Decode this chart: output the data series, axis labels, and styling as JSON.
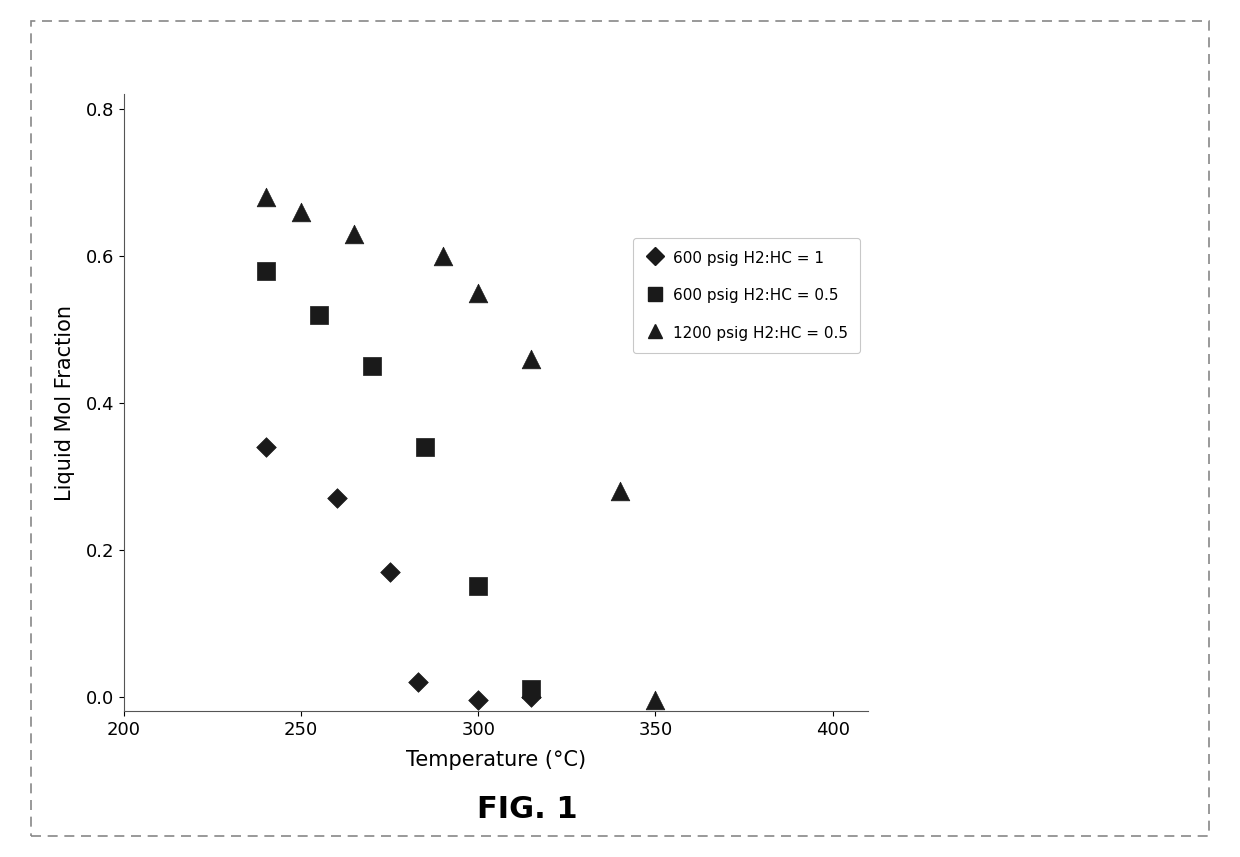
{
  "series1_label": "600 psig H2:HC = 1",
  "series2_label": "600 psig H2:HC = 0.5",
  "series3_label": "1200 psig H2:HC = 0.5",
  "series1_x": [
    240,
    260,
    275,
    283,
    300,
    315
  ],
  "series1_y": [
    0.34,
    0.27,
    0.17,
    0.02,
    -0.005,
    0.0
  ],
  "series2_x": [
    240,
    255,
    270,
    285,
    300,
    315
  ],
  "series2_y": [
    0.58,
    0.52,
    0.45,
    0.34,
    0.15,
    0.01
  ],
  "series3_x": [
    240,
    250,
    265,
    290,
    300,
    315,
    340,
    350
  ],
  "series3_y": [
    0.68,
    0.66,
    0.63,
    0.6,
    0.55,
    0.46,
    0.28,
    -0.005
  ],
  "xlabel": "Temperature (°C)",
  "ylabel": "Liquid Mol Fraction",
  "xlim": [
    200,
    410
  ],
  "ylim": [
    -0.02,
    0.82
  ],
  "xticks": [
    200,
    250,
    300,
    350,
    400
  ],
  "yticks": [
    0.0,
    0.2,
    0.4,
    0.6,
    0.8
  ],
  "fig_label": "FIG. 1",
  "color": "#1a1a1a",
  "background": "#ffffff",
  "marker_size": 100,
  "axis_fontsize": 15,
  "tick_fontsize": 13,
  "legend_fontsize": 11,
  "fig_label_fontsize": 22,
  "border_color": "#888888",
  "border_dash": [
    6,
    4
  ]
}
